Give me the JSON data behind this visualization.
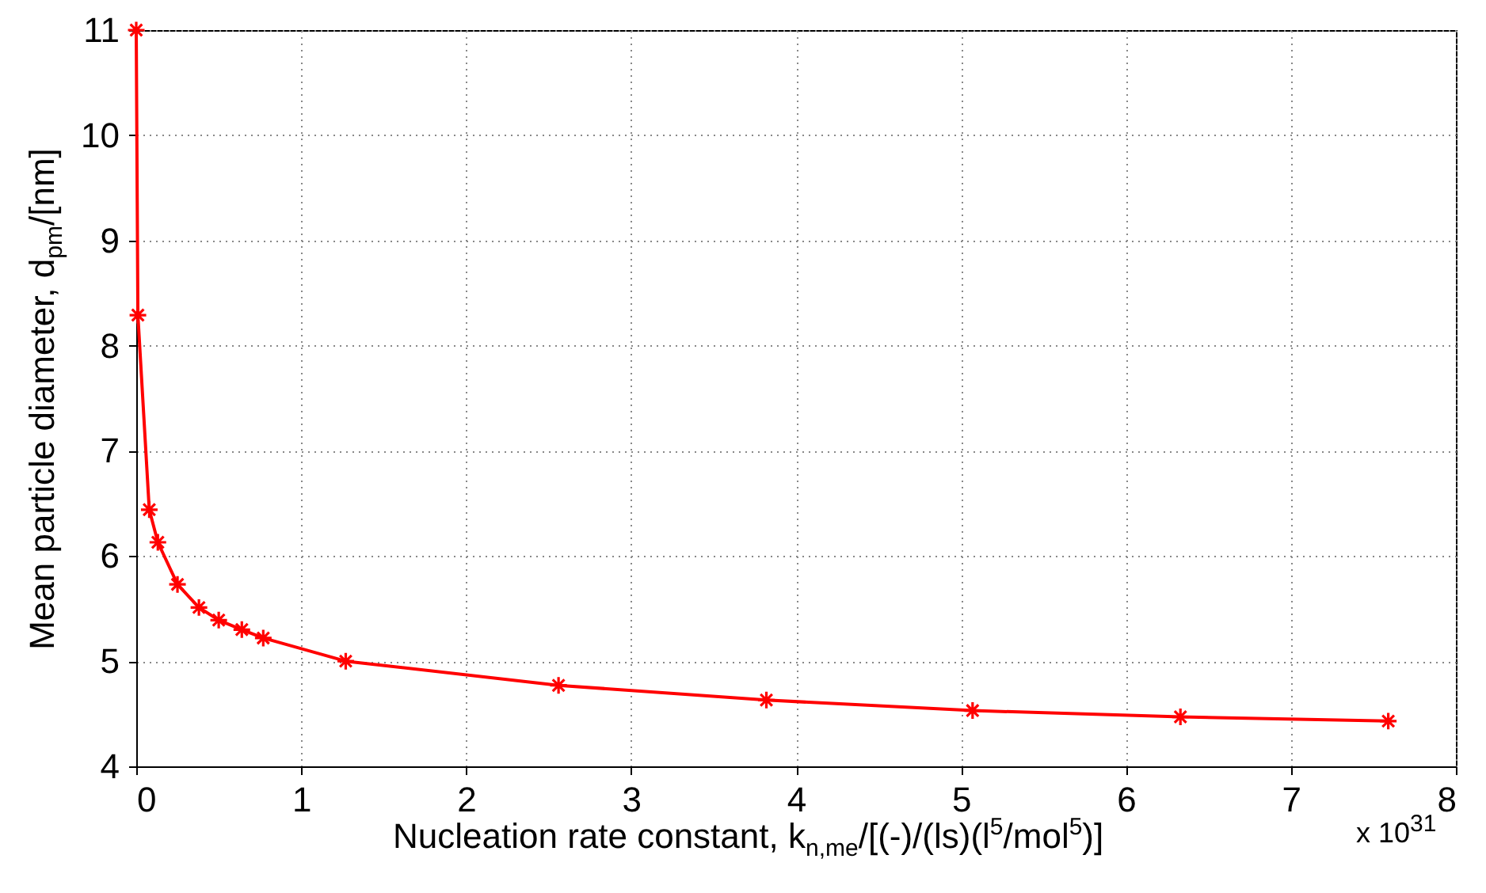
{
  "chart_data": {
    "type": "line",
    "xlabel": "Nucleation rate constant, k$_{n,me}$/[(-)/(ls)(l$^{5}$/mol$^{5}$)]",
    "ylabel": "Mean particle diameter, d$_{pm}$/[nm]",
    "annotations": [
      "x 10$^{31}$"
    ],
    "x": [
      0,
      0.01,
      0.079,
      0.131,
      0.25,
      0.38,
      0.5,
      0.64,
      0.77,
      1.27,
      2.56,
      3.82,
      5.07,
      6.33,
      7.59
    ],
    "series": [
      {
        "color": "#ff0000",
        "values": [
          11,
          8.29,
          6.44,
          6.13,
          5.73,
          5.51,
          5.39,
          5.3,
          5.22,
          5.0,
          4.77,
          4.63,
          4.53,
          4.47,
          4.43
        ]
      }
    ],
    "xlim": [
      0,
      8
    ],
    "xticks": [
      0,
      1,
      2,
      3,
      4,
      5,
      6,
      7,
      8
    ],
    "ylim": [
      4,
      11
    ],
    "yticks": [
      4,
      5,
      6,
      7,
      8,
      9,
      10,
      11
    ],
    "grid": true,
    "marker": "cross",
    "line_style": "solid"
  }
}
